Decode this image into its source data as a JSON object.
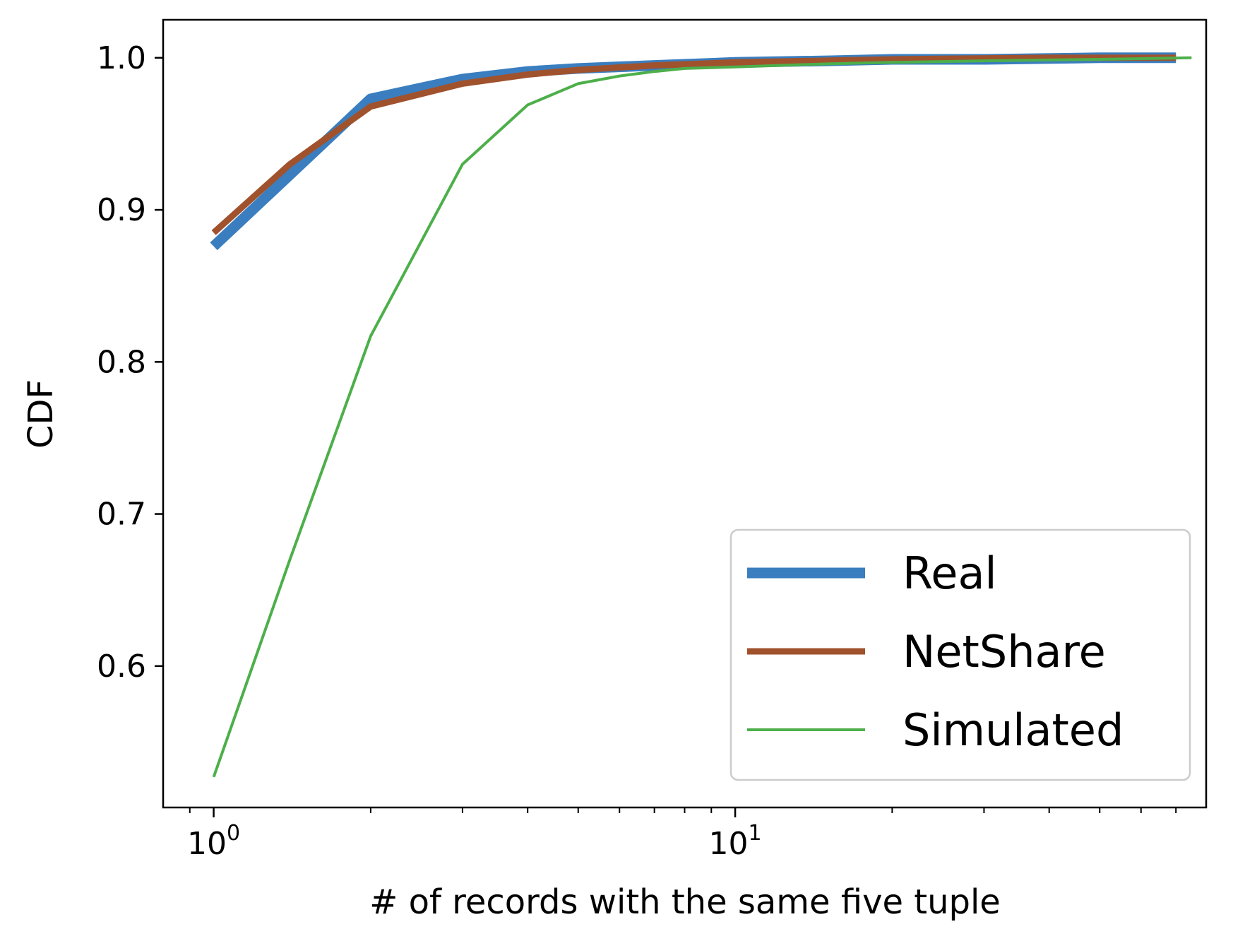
{
  "chart_data": {
    "type": "line",
    "xlabel": "# of records with the same five tuple",
    "ylabel": "CDF",
    "xscale": "log",
    "xlim": [
      0.8,
      80
    ],
    "ylim": [
      0.507,
      1.025
    ],
    "grid": false,
    "legend_position": "lower-right",
    "xticks": [
      {
        "value": 1,
        "base": "10",
        "exp": "0"
      },
      {
        "value": 10,
        "base": "10",
        "exp": "1"
      }
    ],
    "yticks": [
      {
        "value": 0.6,
        "label": "0.6"
      },
      {
        "value": 0.7,
        "label": "0.7"
      },
      {
        "value": 0.8,
        "label": "0.8"
      },
      {
        "value": 0.9,
        "label": "0.9"
      },
      {
        "value": 1.0,
        "label": "1.0"
      }
    ],
    "series": [
      {
        "name": "Real",
        "color": "#3a7ebf",
        "x": [
          1,
          2,
          3,
          4,
          5,
          7,
          10,
          15,
          20,
          30,
          50,
          70
        ],
        "y": [
          0.876,
          0.973,
          0.986,
          0.991,
          0.993,
          0.995,
          0.997,
          0.998,
          0.999,
          0.999,
          1.0,
          1.0
        ]
      },
      {
        "name": "NetShare",
        "color": "#a0522d",
        "x": [
          1,
          1.4,
          2,
          3,
          4,
          5,
          7,
          10,
          20,
          40,
          70
        ],
        "y": [
          0.885,
          0.93,
          0.968,
          0.983,
          0.989,
          0.992,
          0.995,
          0.997,
          0.999,
          1.0,
          1.0
        ]
      },
      {
        "name": "Simulated",
        "color": "#4daf4a",
        "x": [
          1,
          1.4,
          2,
          3,
          4,
          5,
          6,
          7,
          8,
          10,
          15,
          20,
          30,
          50,
          75
        ],
        "y": [
          0.527,
          0.67,
          0.817,
          0.93,
          0.969,
          0.983,
          0.988,
          0.991,
          0.993,
          0.994,
          0.996,
          0.997,
          0.998,
          0.999,
          1.0
        ]
      }
    ]
  }
}
